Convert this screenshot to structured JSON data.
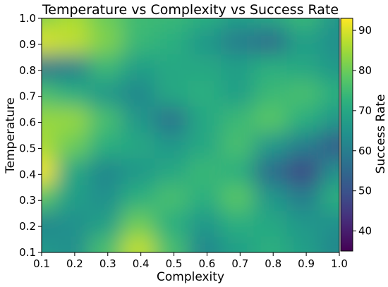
{
  "chart_data": {
    "type": "heatmap",
    "title": "Temperature vs Complexity vs Success Rate",
    "xlabel": "Complexity",
    "ylabel": "Temperature",
    "colorbar_label": "Success Rate",
    "colormap": "viridis",
    "xlim": [
      0.1,
      1.0
    ],
    "ylim": [
      0.1,
      1.0
    ],
    "clim": [
      35,
      93
    ],
    "x_ticks": [
      "0.1",
      "0.2",
      "0.3",
      "0.4",
      "0.5",
      "0.6",
      "0.7",
      "0.8",
      "0.9",
      "1.0"
    ],
    "y_ticks": [
      "0.1",
      "0.2",
      "0.3",
      "0.4",
      "0.5",
      "0.6",
      "0.7",
      "0.8",
      "0.9",
      "1.0"
    ],
    "colorbar_ticks": [
      {
        "value": 40,
        "label": "40"
      },
      {
        "value": 50,
        "label": "50"
      },
      {
        "value": 60,
        "label": "60"
      },
      {
        "value": 70,
        "label": "70"
      },
      {
        "value": 80,
        "label": "80"
      },
      {
        "value": 90,
        "label": "90"
      }
    ],
    "x": [
      0.1,
      0.2,
      0.3,
      0.4,
      0.5,
      0.6,
      0.7,
      0.8,
      0.9,
      1.0
    ],
    "y": [
      1.0,
      0.9,
      0.8,
      0.7,
      0.6,
      0.5,
      0.4,
      0.3,
      0.2,
      0.1
    ],
    "values": [
      [
        82,
        86,
        80,
        75,
        74,
        72,
        68,
        70,
        74,
        66
      ],
      [
        90,
        88,
        82,
        74,
        72,
        66,
        60,
        56,
        68,
        64
      ],
      [
        58,
        60,
        74,
        68,
        70,
        70,
        68,
        72,
        70,
        66
      ],
      [
        76,
        72,
        66,
        62,
        70,
        72,
        68,
        74,
        76,
        72
      ],
      [
        84,
        84,
        76,
        66,
        58,
        70,
        74,
        78,
        72,
        66
      ],
      [
        86,
        80,
        72,
        70,
        66,
        70,
        76,
        66,
        60,
        52
      ],
      [
        92,
        70,
        62,
        66,
        70,
        74,
        72,
        56,
        48,
        64
      ],
      [
        78,
        68,
        64,
        72,
        76,
        72,
        78,
        66,
        60,
        72
      ],
      [
        62,
        64,
        68,
        80,
        72,
        66,
        72,
        70,
        66,
        64
      ],
      [
        66,
        64,
        76,
        88,
        76,
        62,
        68,
        72,
        68,
        62
      ]
    ]
  }
}
